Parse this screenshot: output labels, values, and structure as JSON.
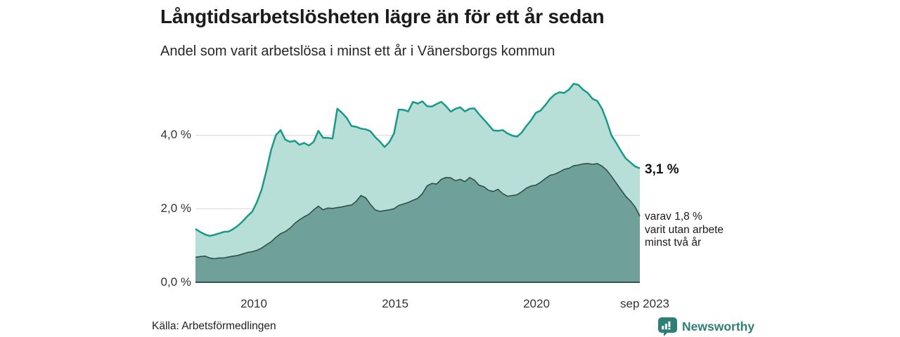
{
  "header": {
    "title": "Långtidsarbetslösheten lägre än för ett år sedan",
    "subtitle": "Andel som varit arbetslösa i minst ett år i Vänersborgs kommun"
  },
  "annotations": {
    "total_end_label": "3,1 %",
    "two_year_end_label": "varav 1,8 %\nvarit utan arbete\nminst två år"
  },
  "footer": {
    "source": "Källa: Arbetsförmedlingen",
    "brand": "Newsworthy"
  },
  "colors": {
    "total_line": "#18998a",
    "total_fill": "#b8ded8",
    "two_year_line": "#2e4f4a",
    "two_year_fill": "#6fa09a",
    "gridline": "#dcdcdc",
    "axis_line": "#33524d",
    "brand_teal": "#2f7f76"
  },
  "chart_data": {
    "type": "area",
    "title": "Långtidsarbetslösheten lägre än för ett år sedan",
    "subtitle": "Andel som varit arbetslösa i minst ett år i Vänersborgs kommun",
    "unit": "%",
    "x_start_year": 2008.0,
    "x_step_years": 0.1667,
    "x_end": "sep 2023",
    "ylim": [
      0,
      5.6
    ],
    "grid": "horizontal",
    "yticks": [
      {
        "value": 4,
        "label": "4,0 %"
      },
      {
        "value": 2,
        "label": "2,0 %"
      },
      {
        "value": 0,
        "label": "0,0 %"
      }
    ],
    "xticks": [
      {
        "value": 2010,
        "label": "2010"
      },
      {
        "value": 2015,
        "label": "2015"
      },
      {
        "value": 2020,
        "label": "2020"
      },
      {
        "value": 2023.667,
        "label": "sep 2023"
      }
    ],
    "series": [
      {
        "name": "Arbetslösa minst ett år",
        "end_value": 3.1,
        "values": [
          1.45,
          1.37,
          1.3,
          1.26,
          1.29,
          1.33,
          1.37,
          1.38,
          1.45,
          1.54,
          1.66,
          1.8,
          1.92,
          2.18,
          2.52,
          3.03,
          3.6,
          4.0,
          4.14,
          3.88,
          3.82,
          3.85,
          3.74,
          3.79,
          3.72,
          3.82,
          4.12,
          3.93,
          3.93,
          3.91,
          4.72,
          4.61,
          4.47,
          4.25,
          4.23,
          4.18,
          4.16,
          4.11,
          3.95,
          3.83,
          3.68,
          3.81,
          4.05,
          4.7,
          4.69,
          4.65,
          4.91,
          4.86,
          4.92,
          4.79,
          4.78,
          4.85,
          4.91,
          4.79,
          4.64,
          4.72,
          4.76,
          4.65,
          4.72,
          4.73,
          4.57,
          4.43,
          4.28,
          4.13,
          4.12,
          4.14,
          4.05,
          3.99,
          3.96,
          4.07,
          4.25,
          4.41,
          4.61,
          4.67,
          4.82,
          4.99,
          5.11,
          5.17,
          5.15,
          5.24,
          5.4,
          5.37,
          5.24,
          5.15,
          4.99,
          4.93,
          4.72,
          4.39,
          3.99,
          3.79,
          3.57,
          3.37,
          3.26,
          3.15,
          3.1
        ]
      },
      {
        "name": "varav utan arbete minst två år",
        "end_value": 1.8,
        "values": [
          0.68,
          0.7,
          0.71,
          0.66,
          0.64,
          0.66,
          0.66,
          0.69,
          0.71,
          0.73,
          0.77,
          0.81,
          0.83,
          0.87,
          0.93,
          1.02,
          1.1,
          1.22,
          1.32,
          1.38,
          1.47,
          1.6,
          1.7,
          1.78,
          1.85,
          1.97,
          2.07,
          1.97,
          2.02,
          2.01,
          2.03,
          2.05,
          2.08,
          2.1,
          2.2,
          2.36,
          2.3,
          2.12,
          1.97,
          1.93,
          1.95,
          1.97,
          2.0,
          2.09,
          2.13,
          2.17,
          2.23,
          2.28,
          2.41,
          2.62,
          2.69,
          2.67,
          2.8,
          2.85,
          2.84,
          2.76,
          2.8,
          2.74,
          2.85,
          2.78,
          2.64,
          2.6,
          2.5,
          2.47,
          2.53,
          2.41,
          2.34,
          2.36,
          2.38,
          2.46,
          2.56,
          2.62,
          2.64,
          2.72,
          2.82,
          2.91,
          2.94,
          3.0,
          3.07,
          3.1,
          3.17,
          3.19,
          3.22,
          3.23,
          3.21,
          3.23,
          3.16,
          3.05,
          2.88,
          2.7,
          2.52,
          2.34,
          2.21,
          2.05,
          1.8
        ]
      }
    ],
    "legend": "none"
  }
}
